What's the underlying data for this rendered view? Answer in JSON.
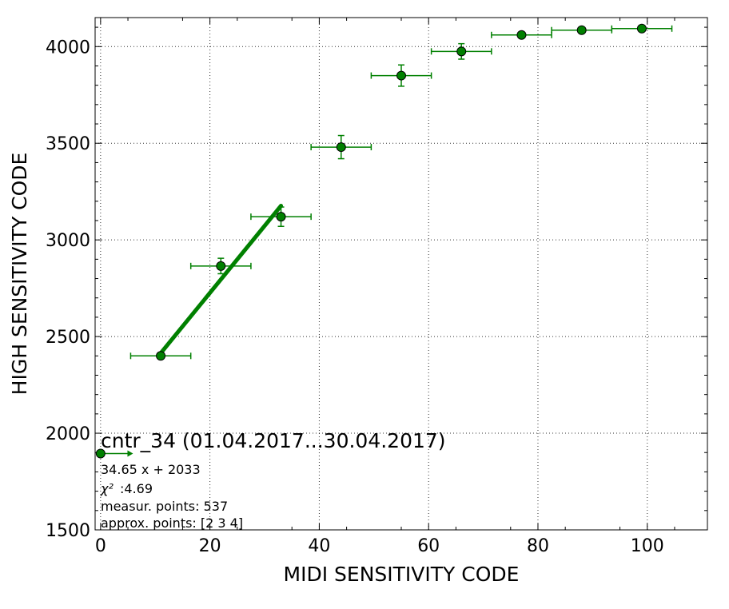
{
  "chart_data": {
    "type": "scatter",
    "xlabel": "MIDI SENSITIVITY CODE",
    "ylabel": "HIGH SENSITIVITY CODE",
    "xlim": [
      -1,
      111
    ],
    "ylim": [
      1500,
      4150
    ],
    "x_ticks": [
      "0",
      "20",
      "40",
      "60",
      "80",
      "100"
    ],
    "y_ticks": [
      "1500",
      "2000",
      "2500",
      "3000",
      "3500",
      "4000"
    ],
    "x_tick_values": [
      0,
      20,
      40,
      60,
      80,
      100
    ],
    "y_tick_values": [
      1500,
      2000,
      2500,
      3000,
      3500,
      4000
    ],
    "grid": true,
    "colors": {
      "series": "#008000",
      "marker_fill": "#008000",
      "marker_edge": "#000000"
    },
    "series": [
      {
        "points": [
          {
            "x": 0,
            "y": 1895,
            "xerr": 5.5,
            "yerr": 0,
            "xerr_side": "right"
          },
          {
            "x": 11,
            "y": 2400,
            "xerr": 5.5,
            "yerr": 15
          },
          {
            "x": 22,
            "y": 2865,
            "xerr": 5.5,
            "yerr": 40
          },
          {
            "x": 33,
            "y": 3120,
            "xerr": 5.5,
            "yerr": 50
          },
          {
            "x": 44,
            "y": 3480,
            "xerr": 5.5,
            "yerr": 60
          },
          {
            "x": 55,
            "y": 3850,
            "xerr": 5.5,
            "yerr": 55
          },
          {
            "x": 66,
            "y": 3975,
            "xerr": 5.5,
            "yerr": 40
          },
          {
            "x": 77,
            "y": 4060,
            "xerr": 5.5,
            "yerr": 10
          },
          {
            "x": 88,
            "y": 4085,
            "xerr": 5.5,
            "yerr": 5
          },
          {
            "x": 99,
            "y": 4093,
            "xerr": 5.5,
            "yerr": 5
          }
        ]
      }
    ],
    "fit_line": {
      "slope": 34.65,
      "intercept": 2033,
      "x_range": [
        11,
        33
      ]
    },
    "annotations": {
      "title": "cntr_34 (01.04.2017...30.04.2017)",
      "equation": "34.65 x + 2033",
      "chi2_symbol": "χ²",
      "chi2_value": ":4.69",
      "measur_points": "measur. points: 537",
      "approx_points": "approx. points: [2 3 4]"
    }
  }
}
